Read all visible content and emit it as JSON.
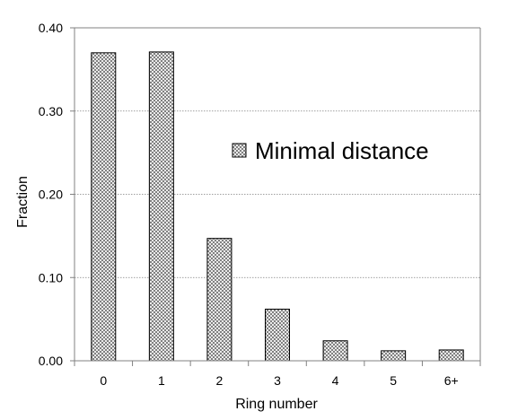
{
  "chart_data": {
    "type": "bar",
    "title": "",
    "xlabel": "Ring number",
    "ylabel": "Fraction",
    "categories": [
      "0",
      "1",
      "2",
      "3",
      "4",
      "5",
      "6+"
    ],
    "series": [
      {
        "name": "Minimal distance",
        "values": [
          0.37,
          0.371,
          0.147,
          0.062,
          0.024,
          0.012,
          0.013
        ]
      }
    ],
    "ylim": [
      0,
      0.4
    ],
    "yticks": [
      0.0,
      0.1,
      0.2,
      0.3,
      0.4
    ],
    "ytick_labels": [
      "0.00",
      "0.10",
      "0.20",
      "0.30",
      "0.40"
    ],
    "grid": true,
    "legend_position": "right",
    "bar_fill": "crosshatch",
    "colors": {
      "bar_stroke": "#000000",
      "grid": "#808080",
      "axis": "#808080"
    }
  }
}
